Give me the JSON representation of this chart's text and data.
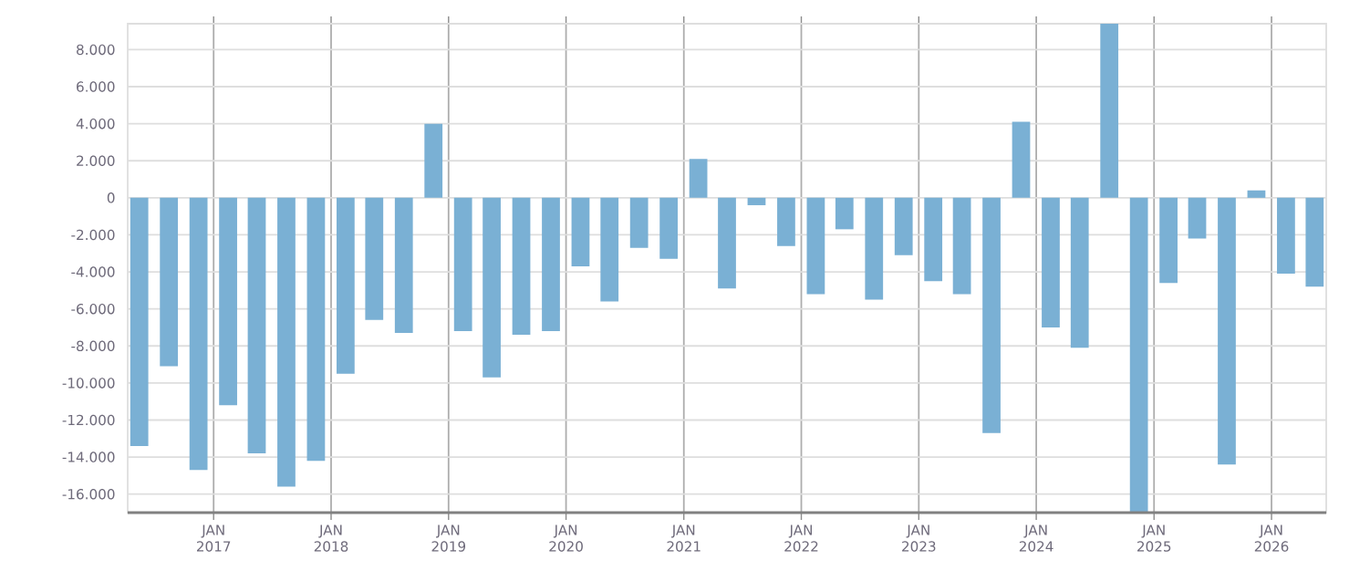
{
  "chart_data": {
    "type": "bar",
    "color": "#7ab0d4",
    "grid": true,
    "x": [
      "2016-05-15",
      "2016-08-15",
      "2016-11-15",
      "2017-02-15",
      "2017-05-15",
      "2017-08-15",
      "2017-11-15",
      "2018-02-15",
      "2018-05-15",
      "2018-08-15",
      "2018-11-15",
      "2019-02-15",
      "2019-05-15",
      "2019-08-15",
      "2019-11-15",
      "2020-02-15",
      "2020-05-15",
      "2020-08-15",
      "2020-11-15",
      "2021-02-15",
      "2021-05-15",
      "2021-08-15",
      "2021-11-15",
      "2022-02-15",
      "2022-05-15",
      "2022-08-15",
      "2022-11-15",
      "2023-02-15",
      "2023-05-15",
      "2023-08-15",
      "2023-11-15",
      "2024-02-15",
      "2024-05-15",
      "2024-08-15",
      "2024-11-15",
      "2025-02-15",
      "2025-05-15",
      "2025-08-15",
      "2025-11-15",
      "2026-02-15",
      "2026-05-15"
    ],
    "values": [
      -13400,
      -9100,
      -14700,
      -11200,
      -13800,
      -15600,
      -14200,
      -9500,
      -6600,
      -7300,
      4000,
      -7200,
      -9700,
      -7400,
      -7200,
      -3700,
      -5600,
      -2700,
      -3300,
      2100,
      -4900,
      -400,
      -2600,
      -5200,
      -1700,
      -5500,
      -3100,
      -4500,
      -5200,
      -12700,
      4100,
      -7000,
      -8100,
      9400,
      -17000,
      -4600,
      -2200,
      -14400,
      400,
      -4100,
      -4800
    ],
    "xlim": [
      "2016-04-09",
      "2026-06-20"
    ],
    "xticks": [
      {
        "value": "2017-01-01",
        "label": "JAN 2017"
      },
      {
        "value": "2018-01-01",
        "label": "JAN 2018"
      },
      {
        "value": "2019-01-01",
        "label": "JAN 2019"
      },
      {
        "value": "2020-01-01",
        "label": "JAN 2020"
      },
      {
        "value": "2021-01-01",
        "label": "JAN 2021"
      },
      {
        "value": "2022-01-01",
        "label": "JAN 2022"
      },
      {
        "value": "2023-01-01",
        "label": "JAN 2023"
      },
      {
        "value": "2024-01-01",
        "label": "JAN 2024"
      },
      {
        "value": "2025-01-01",
        "label": "JAN 2025"
      },
      {
        "value": "2026-01-01",
        "label": "JAN 2026"
      }
    ],
    "ylim": [
      -17000,
      9400
    ],
    "yticks": [
      {
        "value": -16000,
        "label": "-16.000"
      },
      {
        "value": -14000,
        "label": "-14.000"
      },
      {
        "value": -12000,
        "label": "-12.000"
      },
      {
        "value": -10000,
        "label": "-10.000"
      },
      {
        "value": -8000,
        "label": "-8.000"
      },
      {
        "value": -6000,
        "label": "-6.000"
      },
      {
        "value": -4000,
        "label": "-4.000"
      },
      {
        "value": -2000,
        "label": "-2.000"
      },
      {
        "value": 0,
        "label": "0"
      },
      {
        "value": 2000,
        "label": "2.000"
      },
      {
        "value": 4000,
        "label": "4.000"
      },
      {
        "value": 6000,
        "label": "6.000"
      },
      {
        "value": 8000,
        "label": "8.000"
      }
    ]
  }
}
